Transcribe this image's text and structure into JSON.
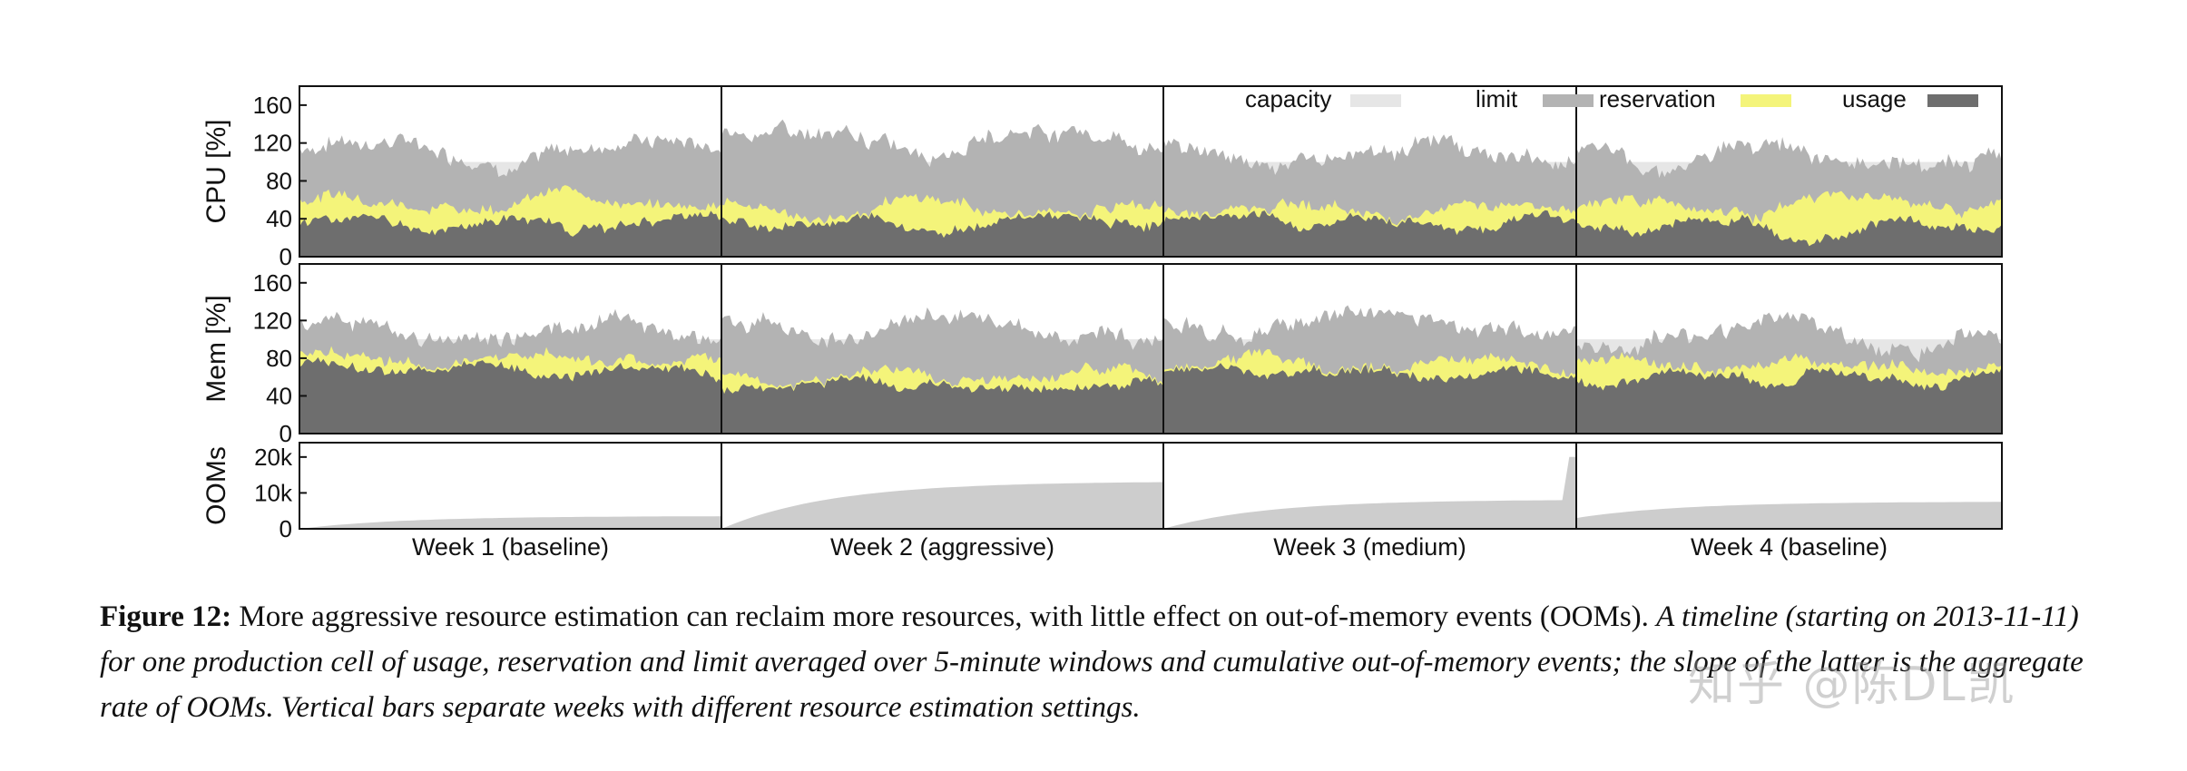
{
  "chart_data": {
    "type": "area",
    "weeks": [
      "Week 1 (baseline)",
      "Week 2 (aggressive)",
      "Week 3 (medium)",
      "Week 4 (baseline)"
    ],
    "legend": {
      "capacity": "capacity",
      "limit": "limit",
      "reservation": "reservation",
      "usage": "usage"
    },
    "colors": {
      "capacity": "#e6e6e6",
      "limit": "#b3b3b3",
      "reservation": "#f4f47a",
      "usage": "#6e6e6e",
      "oom": "#cdcdcd"
    },
    "panels": [
      {
        "id": "cpu",
        "ylabel": "CPU [%]",
        "ylim": [
          0,
          180
        ],
        "yticks": [
          0,
          40,
          80,
          120,
          160
        ],
        "ytick_labels": [
          "0",
          "40",
          "80",
          "120",
          "160"
        ],
        "capacity": 100,
        "weeks": [
          {
            "limit": 115,
            "reservation": 60,
            "usage": 35
          },
          {
            "limit": 125,
            "reservation": 50,
            "usage": 38
          },
          {
            "limit": 110,
            "reservation": 52,
            "usage": 38
          },
          {
            "limit": 108,
            "reservation": 55,
            "usage": 34
          }
        ]
      },
      {
        "id": "mem",
        "ylabel": "Mem [%]",
        "ylim": [
          0,
          180
        ],
        "yticks": [
          0,
          40,
          80,
          120,
          160
        ],
        "ytick_labels": [
          "0",
          "40",
          "80",
          "120",
          "160"
        ],
        "capacity": 100,
        "weeks": [
          {
            "limit": 110,
            "reservation": 80,
            "usage": 68
          },
          {
            "limit": 115,
            "reservation": 60,
            "usage": 52
          },
          {
            "limit": 118,
            "reservation": 75,
            "usage": 65
          },
          {
            "limit": 105,
            "reservation": 72,
            "usage": 60
          }
        ]
      }
    ],
    "ooms": {
      "ylabel": "OOMs",
      "ylim": [
        0,
        24000
      ],
      "yticks": [
        0,
        10000,
        20000
      ],
      "ytick_labels": [
        "0",
        "10k",
        "20k"
      ],
      "weeks": [
        {
          "start": 0,
          "end": 3500
        },
        {
          "start": 0,
          "end": 13000
        },
        {
          "start": 0,
          "end": 8000,
          "spike": 20000
        },
        {
          "start": 3000,
          "end": 7500
        }
      ]
    }
  },
  "caption": {
    "label": "Figure 12:",
    "summary": "More aggressive resource estimation can reclaim more resources, with little effect on out-of-memory events (OOMs).",
    "detail": "A timeline (starting on 2013-11-11) for one production cell of usage, reservation and limit averaged over 5-minute windows and cumulative out-of-memory events; the slope of the latter is the aggregate rate of OOMs. Vertical bars separate weeks with different resource estimation settings."
  },
  "watermark": "知乎 @陈DL凯"
}
